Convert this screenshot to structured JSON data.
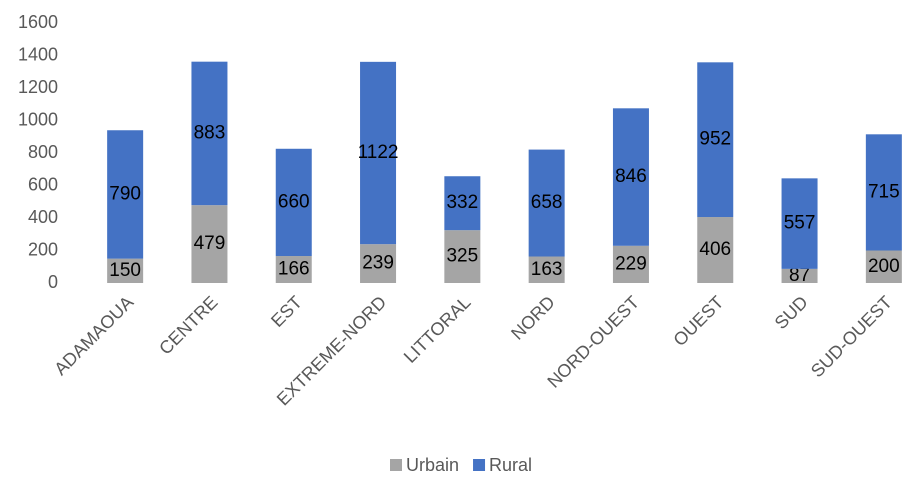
{
  "chart_data": {
    "type": "bar",
    "stacked": true,
    "categories": [
      "ADAMAOUA",
      "CENTRE",
      "EST",
      "EXTREME-NORD",
      "LITTORAL",
      "NORD",
      "NORD-OUEST",
      "OUEST",
      "SUD",
      "SUD-OUEST"
    ],
    "series": [
      {
        "name": "Urbain",
        "color": "#a5a5a5",
        "values": [
          150,
          479,
          166,
          239,
          325,
          163,
          229,
          406,
          87,
          200
        ]
      },
      {
        "name": "Rural",
        "color": "#4472c4",
        "values": [
          790,
          883,
          660,
          1122,
          332,
          658,
          846,
          952,
          557,
          715
        ]
      }
    ],
    "ylim": [
      0,
      1600
    ],
    "yticks": [
      0,
      200,
      400,
      600,
      800,
      1000,
      1200,
      1400,
      1600
    ],
    "grid": false,
    "legend": "bottom"
  }
}
